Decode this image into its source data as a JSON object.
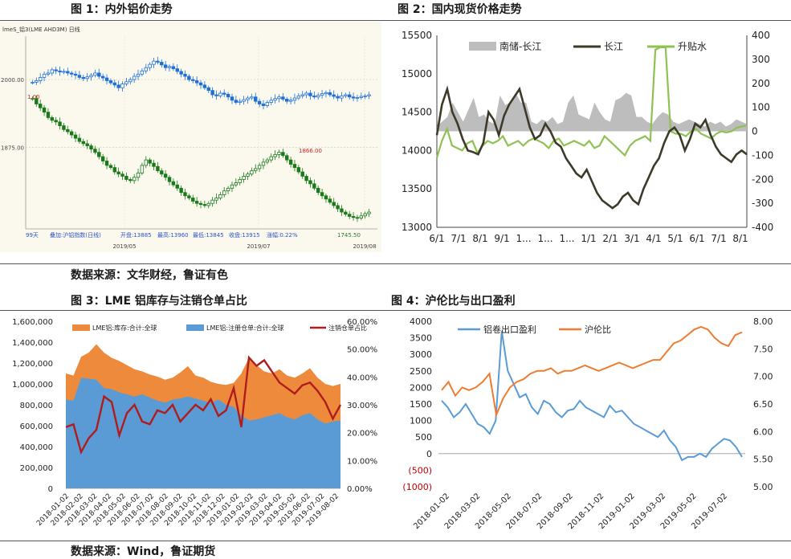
{
  "titles": {
    "fig1": "图 1：内外铝价走势",
    "fig2": "图 2：国内现货价格走势",
    "fig3": "图 3：LME 铝库存与注销仓单占比",
    "fig4": "图 4：沪伦比与出口盈利"
  },
  "sources": {
    "top": "数据来源：文华财经，鲁证有色",
    "bottom": "数据来源：Wind，鲁证期货"
  },
  "colors": {
    "up_candle": "#1e6fd8",
    "down_candle": "#1a7a1a",
    "fig2_spread": "#bdbdbd",
    "fig2_changjiang": "#3d3a2a",
    "fig2_premium": "#8fc153",
    "fig3_inventory": "#ee8a3c",
    "fig3_cancelled": "#5b9bd5",
    "fig3_ratio": "#b01c1c",
    "fig4_profit": "#5b9bd5",
    "fig4_ratio": "#ed7d31"
  },
  "chart_data": [
    {
      "id": "fig1",
      "type": "candlestick",
      "header_text": "lmeS_铝3(LME AHD3M)  日线",
      "info_bar": {
        "period": "99天",
        "overlay": "叠加:沪铝指数(日线)",
        "open": "开盘:13885",
        "high": "最高:13960",
        "low": "最低:13845",
        "close": "收盘:13915",
        "change": "涨幅:0.22%"
      },
      "y_ticks": [
        "2000.00",
        "1875.00"
      ],
      "x_ticks": [
        "2019/05",
        "2019/07",
        "2019/08"
      ],
      "annotations": [
        "1.00",
        "1866.00",
        "1745.50"
      ],
      "ylim": [
        1725,
        2080
      ],
      "lme_series": [
        1995,
        1998,
        2004,
        2010,
        2012,
        2018,
        2016,
        2014,
        2015,
        2012,
        2010,
        2008,
        2004,
        2002,
        2005,
        2008,
        2012,
        2006,
        2003,
        1998,
        1994,
        1990,
        1985,
        1992,
        1996,
        2000,
        2006,
        2010,
        2016,
        2022,
        2028,
        2034,
        2032,
        2027,
        2022,
        2024,
        2020,
        2015,
        2010,
        2006,
        2000,
        1998,
        1994,
        1990,
        1985,
        1980,
        1972,
        1970,
        1975,
        1973,
        1968,
        1962,
        1958,
        1960,
        1963,
        1966,
        1968,
        1960,
        1955,
        1952,
        1958,
        1962,
        1965,
        1968,
        1964,
        1960,
        1962,
        1966,
        1970,
        1972,
        1975,
        1970,
        1968,
        1971,
        1974,
        1976,
        1972,
        1969,
        1966,
        1970,
        1972,
        1968,
        1966,
        1967,
        1969,
        1970,
        1972
      ],
      "shfe_series": [
        1965,
        1955,
        1948,
        1940,
        1930,
        1925,
        1922,
        1915,
        1908,
        1904,
        1898,
        1892,
        1886,
        1882,
        1878,
        1872,
        1866,
        1858,
        1850,
        1842,
        1838,
        1830,
        1826,
        1822,
        1816,
        1814,
        1820,
        1828,
        1842,
        1852,
        1846,
        1840,
        1832,
        1826,
        1820,
        1812,
        1806,
        1800,
        1792,
        1786,
        1782,
        1776,
        1772,
        1770,
        1768,
        1772,
        1778,
        1782,
        1788,
        1795,
        1800,
        1806,
        1810,
        1816,
        1822,
        1826,
        1832,
        1836,
        1842,
        1848,
        1852,
        1858,
        1862,
        1866,
        1860,
        1852,
        1844,
        1838,
        1830,
        1822,
        1814,
        1808,
        1800,
        1792,
        1786,
        1780,
        1774,
        1768,
        1762,
        1756,
        1752,
        1748,
        1746,
        1745,
        1749,
        1753,
        1756
      ]
    },
    {
      "id": "fig2",
      "type": "line",
      "legend": [
        "南储-长江",
        "长江",
        "升贴水"
      ],
      "x_ticks": [
        "6/1",
        "7/1",
        "8/1",
        "9/1",
        "1...",
        "1...",
        "1...",
        "1/1",
        "2/1",
        "3/1",
        "4/1",
        "5/1",
        "6/1",
        "7/1",
        "8/1"
      ],
      "y_left_ticks": [
        "15500",
        "15000",
        "14500",
        "14000",
        "13500",
        "13000"
      ],
      "y_right_ticks": [
        "400",
        "300",
        "200",
        "100",
        "0",
        "-100",
        "-200",
        "-300",
        "-400"
      ],
      "ylim_left": [
        13000,
        15500
      ],
      "ylim_right": [
        -400,
        400
      ],
      "series": [
        {
          "name": "长江",
          "axis": "left",
          "values": [
            14200,
            14600,
            14800,
            14500,
            14350,
            14150,
            14000,
            13980,
            13950,
            14100,
            14500,
            14400,
            14200,
            14450,
            14600,
            14700,
            14800,
            14550,
            14300,
            14150,
            14200,
            14350,
            14250,
            14100,
            14050,
            13900,
            13800,
            13700,
            13650,
            13750,
            13600,
            13450,
            13350,
            13300,
            13250,
            13300,
            13400,
            13450,
            13350,
            13300,
            13500,
            13650,
            13800,
            13900,
            14100,
            14250,
            14300,
            14200,
            14000,
            14150,
            14350,
            14300,
            14400,
            14200,
            14050,
            13950,
            13900,
            13850,
            13950,
            14000,
            13950
          ]
        },
        {
          "name": "南储-长江",
          "axis": "right",
          "values": [
            20,
            40,
            60,
            120,
            80,
            40,
            90,
            140,
            60,
            70,
            40,
            30,
            150,
            110,
            120,
            160,
            120,
            120,
            40,
            30,
            50,
            40,
            60,
            30,
            40,
            120,
            150,
            70,
            60,
            50,
            120,
            80,
            50,
            40,
            130,
            140,
            160,
            150,
            60,
            60,
            40,
            30,
            60,
            80,
            70,
            40,
            30,
            40,
            50,
            40,
            30,
            20,
            40,
            30,
            40,
            20,
            30,
            50,
            40,
            30
          ]
        },
        {
          "name": "升贴水",
          "axis": "right",
          "values": [
            -110,
            -40,
            10,
            -60,
            -70,
            -80,
            -50,
            -40,
            -90,
            -60,
            -40,
            -50,
            -40,
            -20,
            -60,
            -50,
            -40,
            -60,
            -40,
            -30,
            -40,
            -50,
            -70,
            -40,
            -30,
            -60,
            -50,
            -40,
            -50,
            -60,
            -40,
            -70,
            -60,
            -20,
            -40,
            -60,
            -80,
            -100,
            -60,
            -40,
            -30,
            -20,
            -40,
            340,
            350,
            350,
            0,
            -10,
            -10,
            -20,
            0,
            10,
            -10,
            -20,
            -30,
            -10,
            0,
            -5,
            0,
            15,
            20,
            25
          ]
        }
      ]
    },
    {
      "id": "fig3",
      "type": "area",
      "legend": [
        "LME铝:库存:合计:全球",
        "LME铝:注册仓单:合计:全球",
        "注销仓单占比"
      ],
      "y_left_ticks": [
        "1,600,000",
        "1,400,000",
        "1,200,000",
        "1,000,000",
        "800,000",
        "600,000",
        "400,000",
        "200,000",
        "0"
      ],
      "y_right_ticks": [
        "60.00%",
        "50.00%",
        "40.00%",
        "30.00%",
        "20.00%",
        "10.00%",
        "0.00%"
      ],
      "x_ticks": [
        "2018-01-02",
        "2018-02-02",
        "2018-03-02",
        "2018-04-02",
        "2018-05-02",
        "2018-06-02",
        "2018-07-02",
        "2018-08-02",
        "2018-09-02",
        "2018-10-02",
        "2018-11-02",
        "2018-12-02",
        "2019-01-02",
        "2019-02-02",
        "2019-03-02",
        "2019-04-02",
        "2019-05-02",
        "2019-06-02",
        "2019-07-02",
        "2019-08-02"
      ],
      "ylim_left": [
        0,
        1600000
      ],
      "ylim_right": [
        0,
        0.6
      ],
      "series": [
        {
          "name": "LME铝:库存:合计:全球",
          "axis": "left",
          "values": [
            1100000,
            1080000,
            1260000,
            1300000,
            1380000,
            1300000,
            1250000,
            1220000,
            1180000,
            1140000,
            1120000,
            1090000,
            1070000,
            1040000,
            1060000,
            1110000,
            1170000,
            1080000,
            1060000,
            1020000,
            1000000,
            990000,
            1010000,
            1100000,
            1250000,
            1180000,
            1120000,
            1100000,
            1140000,
            1080000,
            1060000,
            1100000,
            1150000,
            1060000,
            1000000,
            980000,
            1000000
          ]
        },
        {
          "name": "LME铝:注册仓单:合计:全球",
          "axis": "left",
          "values": [
            850000,
            840000,
            1060000,
            1050000,
            1040000,
            960000,
            950000,
            920000,
            900000,
            880000,
            900000,
            870000,
            840000,
            820000,
            850000,
            860000,
            880000,
            860000,
            840000,
            820000,
            850000,
            800000,
            780000,
            700000,
            650000,
            660000,
            680000,
            700000,
            720000,
            680000,
            660000,
            700000,
            720000,
            660000,
            620000,
            640000,
            650000
          ]
        },
        {
          "name": "注销仓单占比",
          "axis": "right",
          "values": [
            0.22,
            0.23,
            0.13,
            0.18,
            0.21,
            0.33,
            0.31,
            0.19,
            0.27,
            0.3,
            0.24,
            0.23,
            0.28,
            0.27,
            0.3,
            0.24,
            0.27,
            0.3,
            0.28,
            0.32,
            0.26,
            0.28,
            0.36,
            0.22,
            0.47,
            0.44,
            0.46,
            0.42,
            0.38,
            0.36,
            0.34,
            0.37,
            0.38,
            0.35,
            0.31,
            0.25,
            0.3
          ]
        }
      ]
    },
    {
      "id": "fig4",
      "type": "line",
      "legend": [
        "铝卷出口盈利",
        "沪伦比"
      ],
      "y_left_ticks": [
        "4000",
        "3500",
        "3000",
        "2500",
        "2000",
        "1500",
        "1000",
        "500",
        "0",
        "(500)",
        "(1000)"
      ],
      "y_right_ticks": [
        "8.00",
        "7.50",
        "7.00",
        "6.50",
        "6.00",
        "5.50",
        "5.00"
      ],
      "x_ticks": [
        "2018-01-02",
        "2018-03-02",
        "2018-05-02",
        "2018-07-02",
        "2018-09-02",
        "2018-11-02",
        "2019-01-02",
        "2019-03-02",
        "2019-05-02",
        "2019-07-02"
      ],
      "ylim_left": [
        -1000,
        4000
      ],
      "ylim_right": [
        5.0,
        8.0
      ],
      "series": [
        {
          "name": "铝卷出口盈利",
          "axis": "left",
          "values": [
            1600,
            1400,
            1100,
            1250,
            1500,
            1200,
            900,
            800,
            600,
            1000,
            3700,
            2500,
            2100,
            1700,
            1800,
            1400,
            1200,
            1600,
            1500,
            1250,
            1100,
            1300,
            1350,
            1600,
            1400,
            1300,
            1200,
            1100,
            1450,
            1250,
            1300,
            1100,
            900,
            800,
            700,
            600,
            500,
            700,
            400,
            200,
            -200,
            -100,
            -100,
            0,
            -100,
            150,
            300,
            450,
            400,
            200,
            -100
          ]
        },
        {
          "name": "沪伦比",
          "axis": "right",
          "values": [
            6.75,
            6.9,
            6.65,
            6.8,
            6.75,
            6.8,
            6.9,
            7.05,
            6.3,
            6.6,
            6.8,
            6.9,
            6.95,
            7.05,
            7.1,
            7.1,
            7.15,
            7.05,
            7.1,
            7.1,
            7.15,
            7.2,
            7.15,
            7.1,
            7.15,
            7.2,
            7.25,
            7.2,
            7.15,
            7.2,
            7.25,
            7.3,
            7.3,
            7.45,
            7.6,
            7.65,
            7.75,
            7.85,
            7.9,
            7.85,
            7.7,
            7.6,
            7.55,
            7.75,
            7.8
          ]
        }
      ]
    }
  ]
}
